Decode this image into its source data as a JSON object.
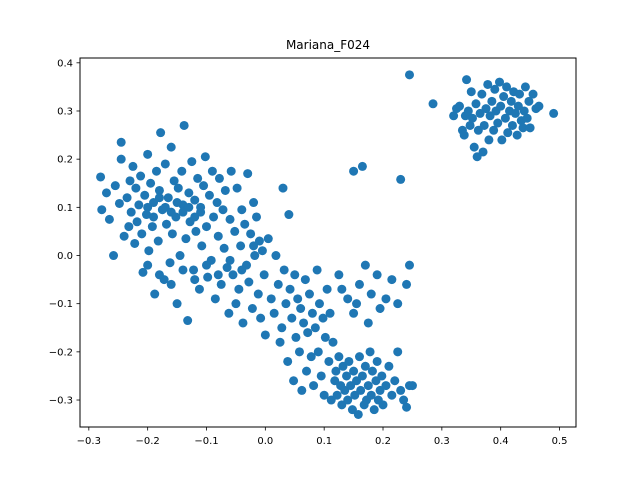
{
  "chart_data": {
    "type": "scatter",
    "title": "Mariana_F024",
    "xlabel": "",
    "ylabel": "",
    "xlim": [
      -0.315,
      0.528
    ],
    "ylim": [
      -0.356,
      0.41
    ],
    "xticks": [
      -0.3,
      -0.2,
      -0.1,
      0.0,
      0.1,
      0.2,
      0.3,
      0.4,
      0.5
    ],
    "yticks": [
      -0.3,
      -0.2,
      -0.1,
      0.0,
      0.1,
      0.2,
      0.3,
      0.4
    ],
    "xtick_labels": [
      "−0.3",
      "−0.2",
      "−0.1",
      "0.0",
      "0.1",
      "0.2",
      "0.3",
      "0.4",
      "0.5"
    ],
    "ytick_labels": [
      "−0.3",
      "−0.2",
      "−0.1",
      "0.0",
      "0.1",
      "0.2",
      "0.3",
      "0.4"
    ],
    "grid": false,
    "legend": "none",
    "series": [
      {
        "color": "#1f77b4",
        "points": [
          [
            -0.28,
            0.163
          ],
          [
            -0.278,
            0.095
          ],
          [
            -0.27,
            0.13
          ],
          [
            -0.265,
            0.075
          ],
          [
            -0.258,
            0.0
          ],
          [
            -0.255,
            0.145
          ],
          [
            -0.248,
            0.108
          ],
          [
            -0.245,
            0.235
          ],
          [
            -0.245,
            0.2
          ],
          [
            -0.24,
            0.04
          ],
          [
            -0.235,
            0.12
          ],
          [
            -0.232,
            0.06
          ],
          [
            -0.23,
            0.155
          ],
          [
            -0.228,
            0.09
          ],
          [
            -0.225,
            0.185
          ],
          [
            -0.222,
            0.025
          ],
          [
            -0.22,
            0.14
          ],
          [
            -0.218,
            0.07
          ],
          [
            -0.215,
            0.105
          ],
          [
            -0.212,
            0.165
          ],
          [
            -0.21,
            0.045
          ],
          [
            -0.208,
            -0.035
          ],
          [
            -0.205,
            0.125
          ],
          [
            -0.202,
            0.085
          ],
          [
            -0.2,
            0.21
          ],
          [
            -0.198,
            0.01
          ],
          [
            -0.195,
            0.15
          ],
          [
            -0.192,
            0.06
          ],
          [
            -0.19,
            0.11
          ],
          [
            -0.188,
            -0.08
          ],
          [
            -0.185,
            0.175
          ],
          [
            -0.182,
            0.03
          ],
          [
            -0.18,
            0.135
          ],
          [
            -0.178,
            0.255
          ],
          [
            -0.175,
            0.095
          ],
          [
            -0.172,
            -0.05
          ],
          [
            -0.17,
            0.19
          ],
          [
            -0.168,
            0.065
          ],
          [
            -0.165,
            0.12
          ],
          [
            -0.162,
            -0.015
          ],
          [
            -0.16,
            0.225
          ],
          [
            -0.158,
            0.045
          ],
          [
            -0.155,
            0.155
          ],
          [
            -0.152,
            0.08
          ],
          [
            -0.15,
            -0.1
          ],
          [
            -0.148,
            0.14
          ],
          [
            -0.145,
            0.0
          ],
          [
            -0.142,
            0.175
          ],
          [
            -0.14,
            0.105
          ],
          [
            -0.138,
            0.27
          ],
          [
            -0.135,
            0.035
          ],
          [
            -0.132,
            -0.135
          ],
          [
            -0.13,
            0.13
          ],
          [
            -0.128,
            0.07
          ],
          [
            -0.125,
            0.195
          ],
          [
            -0.122,
            -0.03
          ],
          [
            -0.12,
            0.115
          ],
          [
            -0.118,
            0.05
          ],
          [
            -0.115,
            0.16
          ],
          [
            -0.112,
            -0.07
          ],
          [
            -0.11,
            0.09
          ],
          [
            -0.108,
            0.02
          ],
          [
            -0.105,
            0.145
          ],
          [
            -0.102,
            0.205
          ],
          [
            -0.1,
            0.06
          ],
          [
            -0.098,
            -0.045
          ],
          [
            -0.095,
            0.125
          ],
          [
            -0.092,
            -0.01
          ],
          [
            -0.09,
            0.175
          ],
          [
            -0.088,
            0.08
          ],
          [
            -0.085,
            -0.09
          ],
          [
            -0.082,
            0.11
          ],
          [
            -0.08,
            0.04
          ],
          [
            -0.078,
            0.16
          ],
          [
            -0.075,
            -0.06
          ],
          [
            -0.072,
            0.095
          ],
          [
            -0.07,
            0.015
          ],
          [
            -0.068,
            0.135
          ],
          [
            -0.065,
            -0.025
          ],
          [
            -0.062,
            -0.12
          ],
          [
            -0.06,
            0.075
          ],
          [
            -0.058,
            0.175
          ],
          [
            -0.055,
            -0.04
          ],
          [
            -0.052,
            0.05
          ],
          [
            -0.05,
            -0.1
          ],
          [
            -0.048,
            0.14
          ],
          [
            -0.045,
            -0.07
          ],
          [
            -0.042,
            0.02
          ],
          [
            -0.04,
            0.095
          ],
          [
            -0.038,
            -0.14
          ],
          [
            -0.035,
            0.065
          ],
          [
            -0.032,
            -0.02
          ],
          [
            -0.03,
            0.17
          ],
          [
            -0.028,
            -0.055
          ],
          [
            -0.025,
            0.045
          ],
          [
            -0.022,
            -0.11
          ],
          [
            -0.02,
            0.11
          ],
          [
            -0.018,
            0.0
          ],
          [
            -0.015,
            0.08
          ],
          [
            -0.012,
            -0.08
          ],
          [
            -0.01,
            0.03
          ],
          [
            -0.008,
            -0.13
          ],
          [
            -0.005,
            0.01
          ],
          [
            -0.002,
            -0.04
          ],
          [
            0.0,
            -0.165
          ],
          [
            0.005,
            0.035
          ],
          [
            0.01,
            -0.09
          ],
          [
            0.015,
            -0.12
          ],
          [
            0.018,
            0.0
          ],
          [
            0.022,
            -0.06
          ],
          [
            0.025,
            -0.18
          ],
          [
            0.028,
            -0.15
          ],
          [
            0.03,
            0.14
          ],
          [
            0.032,
            -0.03
          ],
          [
            0.035,
            -0.1
          ],
          [
            0.038,
            -0.22
          ],
          [
            0.04,
            0.085
          ],
          [
            0.042,
            -0.07
          ],
          [
            0.045,
            -0.13
          ],
          [
            0.048,
            -0.26
          ],
          [
            0.05,
            -0.04
          ],
          [
            0.052,
            -0.17
          ],
          [
            0.055,
            -0.09
          ],
          [
            0.058,
            -0.2
          ],
          [
            0.06,
            -0.11
          ],
          [
            0.062,
            -0.28
          ],
          [
            0.065,
            -0.14
          ],
          [
            0.068,
            -0.05
          ],
          [
            0.07,
            -0.24
          ],
          [
            0.072,
            -0.16
          ],
          [
            0.075,
            -0.08
          ],
          [
            0.078,
            -0.21
          ],
          [
            0.08,
            -0.12
          ],
          [
            0.082,
            -0.27
          ],
          [
            0.085,
            -0.15
          ],
          [
            0.088,
            -0.03
          ],
          [
            0.09,
            -0.2
          ],
          [
            0.092,
            -0.1
          ],
          [
            0.095,
            -0.25
          ],
          [
            0.098,
            -0.13
          ],
          [
            0.1,
            -0.29
          ],
          [
            0.102,
            -0.17
          ],
          [
            0.105,
            -0.07
          ],
          [
            0.108,
            -0.22
          ],
          [
            0.11,
            -0.12
          ],
          [
            0.112,
            -0.3
          ],
          [
            0.115,
            -0.18
          ],
          [
            0.118,
            -0.26
          ],
          [
            0.12,
            -0.24
          ],
          [
            0.122,
            -0.29
          ],
          [
            0.125,
            -0.21
          ],
          [
            0.128,
            -0.27
          ],
          [
            0.13,
            -0.31
          ],
          [
            0.132,
            -0.23
          ],
          [
            0.135,
            -0.28
          ],
          [
            0.138,
            -0.25
          ],
          [
            0.14,
            -0.3
          ],
          [
            0.142,
            -0.22
          ],
          [
            0.145,
            -0.27
          ],
          [
            0.148,
            -0.32
          ],
          [
            0.15,
            -0.24
          ],
          [
            0.152,
            -0.29
          ],
          [
            0.155,
            -0.26
          ],
          [
            0.158,
            -0.33
          ],
          [
            0.16,
            -0.21
          ],
          [
            0.162,
            -0.28
          ],
          [
            0.165,
            -0.25
          ],
          [
            0.168,
            -0.31
          ],
          [
            0.17,
            -0.23
          ],
          [
            0.172,
            -0.3
          ],
          [
            0.175,
            -0.27
          ],
          [
            0.178,
            -0.2
          ],
          [
            0.18,
            -0.29
          ],
          [
            0.182,
            -0.24
          ],
          [
            0.185,
            -0.32
          ],
          [
            0.188,
            -0.26
          ],
          [
            0.19,
            -0.22
          ],
          [
            0.192,
            -0.3
          ],
          [
            0.195,
            -0.28
          ],
          [
            0.198,
            -0.25
          ],
          [
            0.2,
            -0.31
          ],
          [
            0.205,
            -0.27
          ],
          [
            0.21,
            -0.23
          ],
          [
            0.215,
            -0.29
          ],
          [
            0.22,
            -0.26
          ],
          [
            0.225,
            -0.2
          ],
          [
            0.23,
            -0.28
          ],
          [
            0.235,
            -0.3
          ],
          [
            0.24,
            -0.315
          ],
          [
            0.245,
            -0.27
          ],
          [
            0.25,
            -0.27
          ],
          [
            0.125,
            -0.04
          ],
          [
            0.13,
            -0.07
          ],
          [
            0.14,
            -0.09
          ],
          [
            0.15,
            -0.12
          ],
          [
            0.155,
            -0.1
          ],
          [
            0.16,
            -0.06
          ],
          [
            0.17,
            -0.02
          ],
          [
            0.175,
            -0.14
          ],
          [
            0.18,
            -0.08
          ],
          [
            0.19,
            -0.04
          ],
          [
            0.195,
            -0.11
          ],
          [
            0.205,
            -0.09
          ],
          [
            0.215,
            -0.05
          ],
          [
            0.225,
            -0.1
          ],
          [
            0.24,
            -0.06
          ],
          [
            0.245,
            -0.02
          ],
          [
            0.15,
            0.175
          ],
          [
            0.165,
            0.185
          ],
          [
            0.23,
            0.158
          ],
          [
            -0.2,
            0.1
          ],
          [
            -0.19,
            0.08
          ],
          [
            -0.18,
            0.12
          ],
          [
            -0.17,
            0.1
          ],
          [
            -0.16,
            0.09
          ],
          [
            -0.15,
            0.11
          ],
          [
            -0.14,
            0.09
          ],
          [
            -0.13,
            0.1
          ],
          [
            -0.12,
            0.08
          ],
          [
            -0.11,
            0.1
          ],
          [
            -0.2,
            -0.02
          ],
          [
            -0.18,
            -0.04
          ],
          [
            -0.16,
            -0.06
          ],
          [
            -0.14,
            -0.03
          ],
          [
            -0.12,
            -0.05
          ],
          [
            -0.1,
            -0.02
          ],
          [
            -0.08,
            -0.04
          ],
          [
            -0.06,
            -0.01
          ],
          [
            -0.04,
            -0.03
          ],
          [
            -0.02,
            0.02
          ],
          [
            0.245,
            0.375
          ],
          [
            0.285,
            0.315
          ],
          [
            0.32,
            0.29
          ],
          [
            0.325,
            0.305
          ],
          [
            0.33,
            0.31
          ],
          [
            0.335,
            0.26
          ],
          [
            0.338,
            0.25
          ],
          [
            0.34,
            0.29
          ],
          [
            0.342,
            0.365
          ],
          [
            0.345,
            0.3
          ],
          [
            0.348,
            0.27
          ],
          [
            0.35,
            0.34
          ],
          [
            0.352,
            0.285
          ],
          [
            0.355,
            0.225
          ],
          [
            0.358,
            0.315
          ],
          [
            0.36,
            0.205
          ],
          [
            0.362,
            0.26
          ],
          [
            0.365,
            0.295
          ],
          [
            0.368,
            0.335
          ],
          [
            0.37,
            0.215
          ],
          [
            0.372,
            0.27
          ],
          [
            0.375,
            0.305
          ],
          [
            0.378,
            0.355
          ],
          [
            0.38,
            0.24
          ],
          [
            0.382,
            0.29
          ],
          [
            0.385,
            0.32
          ],
          [
            0.388,
            0.26
          ],
          [
            0.39,
            0.345
          ],
          [
            0.392,
            0.3
          ],
          [
            0.395,
            0.275
          ],
          [
            0.398,
            0.36
          ],
          [
            0.4,
            0.31
          ],
          [
            0.402,
            0.24
          ],
          [
            0.405,
            0.33
          ],
          [
            0.408,
            0.285
          ],
          [
            0.41,
            0.35
          ],
          [
            0.412,
            0.255
          ],
          [
            0.415,
            0.3
          ],
          [
            0.418,
            0.32
          ],
          [
            0.42,
            0.27
          ],
          [
            0.422,
            0.34
          ],
          [
            0.425,
            0.295
          ],
          [
            0.428,
            0.25
          ],
          [
            0.43,
            0.31
          ],
          [
            0.432,
            0.335
          ],
          [
            0.435,
            0.28
          ],
          [
            0.438,
            0.265
          ],
          [
            0.44,
            0.3
          ],
          [
            0.442,
            0.35
          ],
          [
            0.445,
            0.285
          ],
          [
            0.448,
            0.32
          ],
          [
            0.45,
            0.265
          ],
          [
            0.455,
            0.335
          ],
          [
            0.46,
            0.305
          ],
          [
            0.465,
            0.31
          ],
          [
            0.49,
            0.295
          ]
        ]
      }
    ]
  }
}
